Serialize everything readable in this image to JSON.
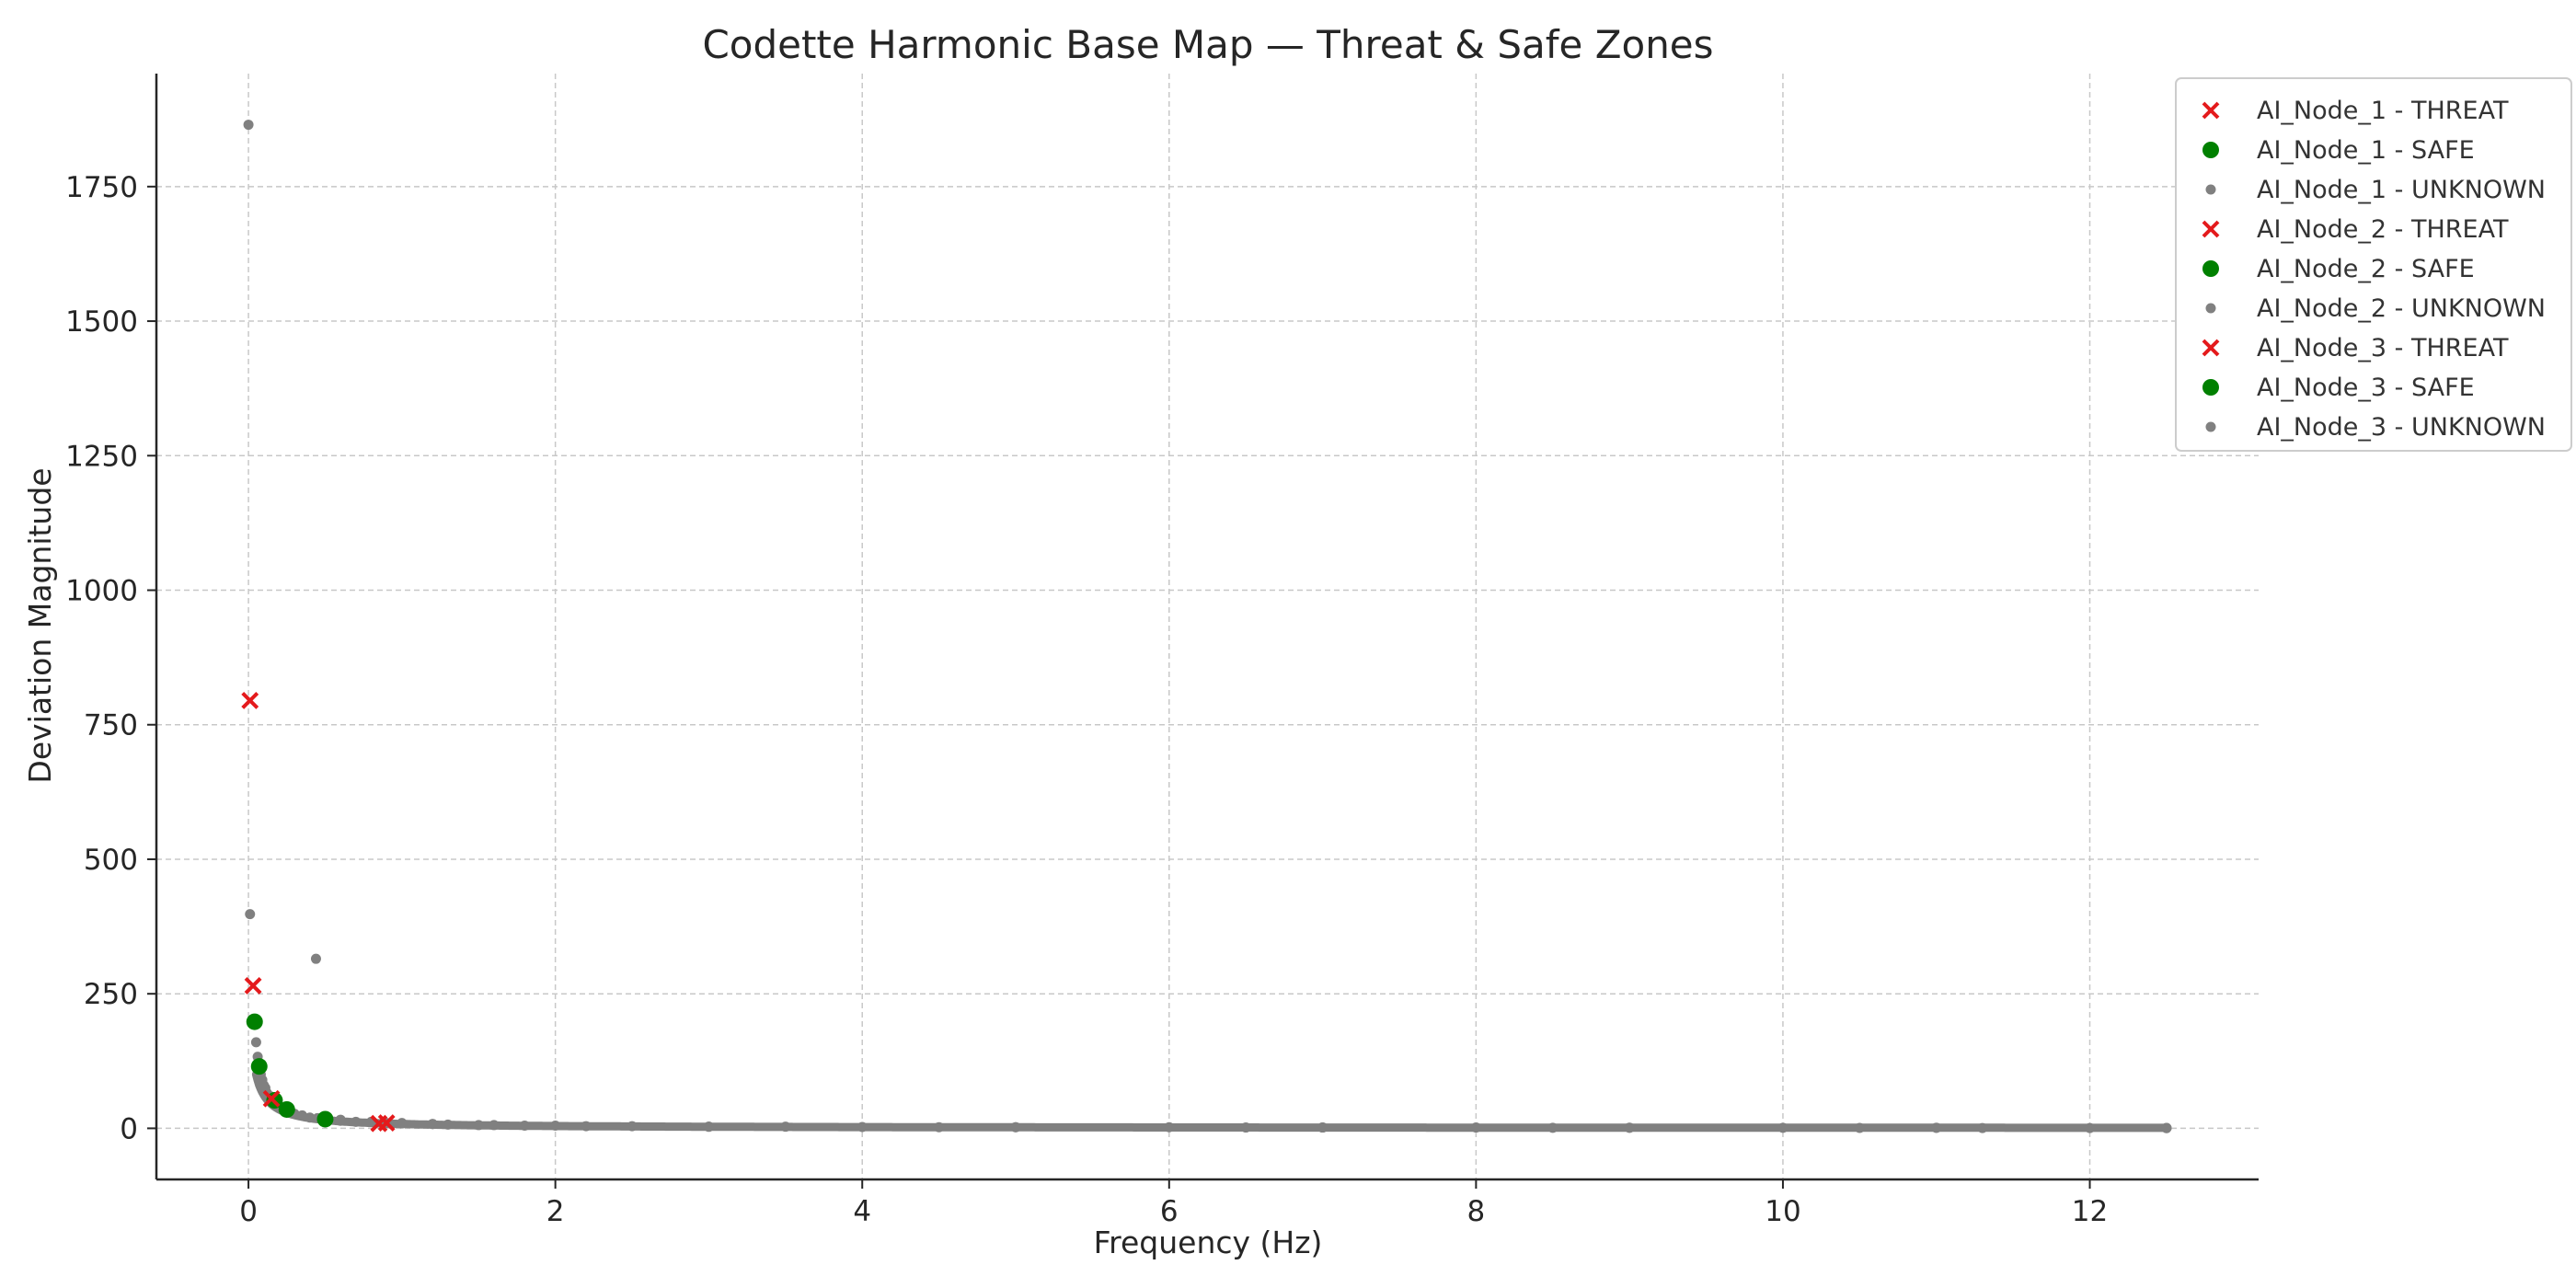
{
  "chart_data": {
    "type": "scatter",
    "title": "Codette Harmonic Base Map — Threat & Safe Zones",
    "xlabel": "Frequency (Hz)",
    "ylabel": "Deviation Magnitude",
    "xlim": [
      -0.6,
      13.1
    ],
    "ylim": [
      -95,
      1960
    ],
    "xticks": [
      0,
      2,
      4,
      6,
      8,
      10,
      12
    ],
    "yticks": [
      0,
      250,
      500,
      750,
      1000,
      1250,
      1500,
      1750
    ],
    "grid": true,
    "legend_position": "top-right",
    "colors": {
      "threat": "#e41a1c",
      "safe": "#008000",
      "unknown": "#808080"
    },
    "series": [
      {
        "name": "AI_Node_1 - THREAT",
        "marker": "x",
        "color": "#e41a1c",
        "x": [
          0.01,
          0.9
        ],
        "y": [
          795,
          10
        ]
      },
      {
        "name": "AI_Node_1 - SAFE",
        "marker": "o",
        "color": "#008000",
        "x": [
          0.04,
          0.25
        ],
        "y": [
          198,
          35
        ]
      },
      {
        "name": "AI_Node_1 - UNKNOWN",
        "marker": ".",
        "color": "#808080",
        "x": [
          0.0,
          0.44,
          0.6,
          0.8,
          1.0,
          1.2,
          1.5,
          2.0,
          3.0,
          4.0,
          5.0,
          6.0,
          7.0,
          8.0,
          9.0,
          10.0,
          11.0,
          12.5
        ],
        "y": [
          1865,
          315,
          16,
          12,
          10,
          8,
          6,
          5,
          3,
          2.5,
          2,
          2,
          1.5,
          1.5,
          1.2,
          1,
          1,
          0.8
        ]
      },
      {
        "name": "AI_Node_2 - THREAT",
        "marker": "x",
        "color": "#e41a1c",
        "x": [
          0.03,
          0.85
        ],
        "y": [
          265,
          9
        ]
      },
      {
        "name": "AI_Node_2 - SAFE",
        "marker": "o",
        "color": "#008000",
        "x": [
          0.07,
          0.5
        ],
        "y": [
          115,
          17
        ]
      },
      {
        "name": "AI_Node_2 - UNKNOWN",
        "marker": ".",
        "color": "#808080",
        "x": [
          0.01,
          0.05,
          0.06,
          0.08,
          0.1,
          0.12,
          0.15,
          0.2,
          0.3,
          0.4,
          0.5,
          0.7,
          1.0,
          1.3,
          1.8,
          2.5,
          3.5,
          5.0,
          7.0,
          9.0,
          11.0,
          12.5
        ],
        "y": [
          398,
          160,
          133,
          100,
          80,
          66,
          54,
          40,
          27,
          20,
          16,
          12,
          9,
          7,
          5,
          4,
          3,
          2,
          1.5,
          1,
          1,
          0.6
        ]
      },
      {
        "name": "AI_Node_3 - THREAT",
        "marker": "x",
        "color": "#e41a1c",
        "x": [
          0.15
        ],
        "y": [
          55
        ]
      },
      {
        "name": "AI_Node_3 - SAFE",
        "marker": "o",
        "color": "#008000",
        "x": [
          0.17
        ],
        "y": [
          52
        ]
      },
      {
        "name": "AI_Node_3 - UNKNOWN",
        "marker": ".",
        "color": "#808080",
        "x": [
          0.09,
          0.11,
          0.14,
          0.18,
          0.22,
          0.28,
          0.35,
          0.45,
          0.6,
          0.9,
          1.2,
          1.6,
          2.2,
          3.0,
          4.5,
          6.5,
          8.5,
          10.5,
          11.3,
          12.0,
          12.5
        ],
        "y": [
          90,
          75,
          60,
          46,
          38,
          30,
          24,
          19,
          14,
          10,
          8,
          6,
          4,
          3,
          2,
          1.5,
          1,
          0.8,
          0.6,
          0.5,
          0.4
        ]
      }
    ]
  }
}
